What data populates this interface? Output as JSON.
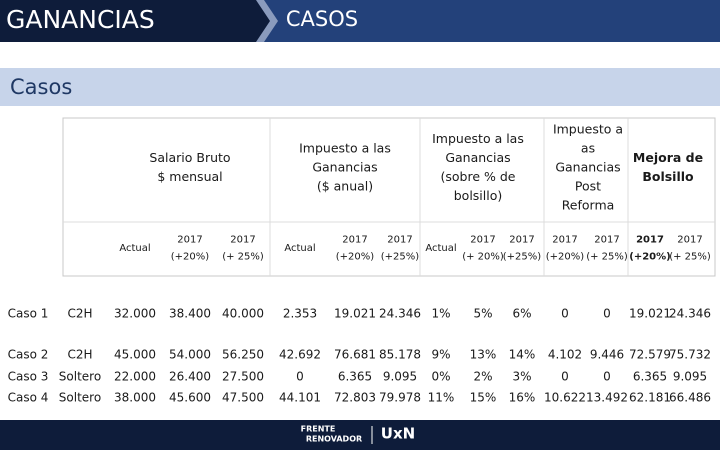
{
  "header": {
    "section": "GANANCIAS",
    "tab": "CASOS"
  },
  "subtitle": "Casos",
  "table": {
    "groups": [
      [
        "Salario Bruto",
        "$ mensual"
      ],
      [
        "Impuesto a las",
        "Ganancias",
        "($ anual)"
      ],
      [
        "Impuesto a las",
        "Ganancias",
        "(sobre % de",
        "bolsillo)"
      ],
      [
        "Impuesto a",
        "as",
        "Ganancias",
        "Post",
        "Reforma"
      ],
      [
        "Mejora de",
        "Bolsillo"
      ]
    ],
    "columns": [
      [
        "Actual"
      ],
      [
        "2017",
        "(+20%)"
      ],
      [
        "2017",
        "(+ 25%)"
      ],
      [
        "Actual"
      ],
      [
        "2017",
        "(+20%)"
      ],
      [
        "2017",
        "(+25%)"
      ],
      [
        "Actual"
      ],
      [
        "2017",
        "(+ 20%)"
      ],
      [
        "2017",
        "(+25%)"
      ],
      [
        "2017",
        "(+20%)"
      ],
      [
        "2017",
        "(+ 25%)"
      ],
      [
        "2017",
        "(+20%)"
      ],
      [
        "2017",
        "(+ 25%)"
      ]
    ],
    "rows": [
      [
        "Caso 1",
        "C2H",
        "32.000",
        "38.400",
        "40.000",
        "2.353",
        "19.021",
        "24.346",
        "1%",
        "5%",
        "6%",
        "0",
        "0",
        "19.021",
        "24.346"
      ],
      [
        "Caso 2",
        "C2H",
        "45.000",
        "54.000",
        "56.250",
        "42.692",
        "76.681",
        "85.178",
        "9%",
        "13%",
        "14%",
        "4.102",
        "9.446",
        "72.579",
        "75.732"
      ],
      [
        "Caso 3",
        "Soltero",
        "22.000",
        "26.400",
        "27.500",
        "0",
        "6.365",
        "9.095",
        "0%",
        "2%",
        "3%",
        "0",
        "0",
        "6.365",
        "9.095"
      ],
      [
        "Caso 4",
        "Soltero",
        "38.000",
        "45.600",
        "47.500",
        "44.101",
        "72.803",
        "79.978",
        "11%",
        "15%",
        "16%",
        "10.622",
        "13.492",
        "62.181",
        "66.486"
      ]
    ]
  },
  "footer": {
    "brand": [
      "FRENTE",
      "RENOVADOR"
    ],
    "logo": "UxN"
  }
}
